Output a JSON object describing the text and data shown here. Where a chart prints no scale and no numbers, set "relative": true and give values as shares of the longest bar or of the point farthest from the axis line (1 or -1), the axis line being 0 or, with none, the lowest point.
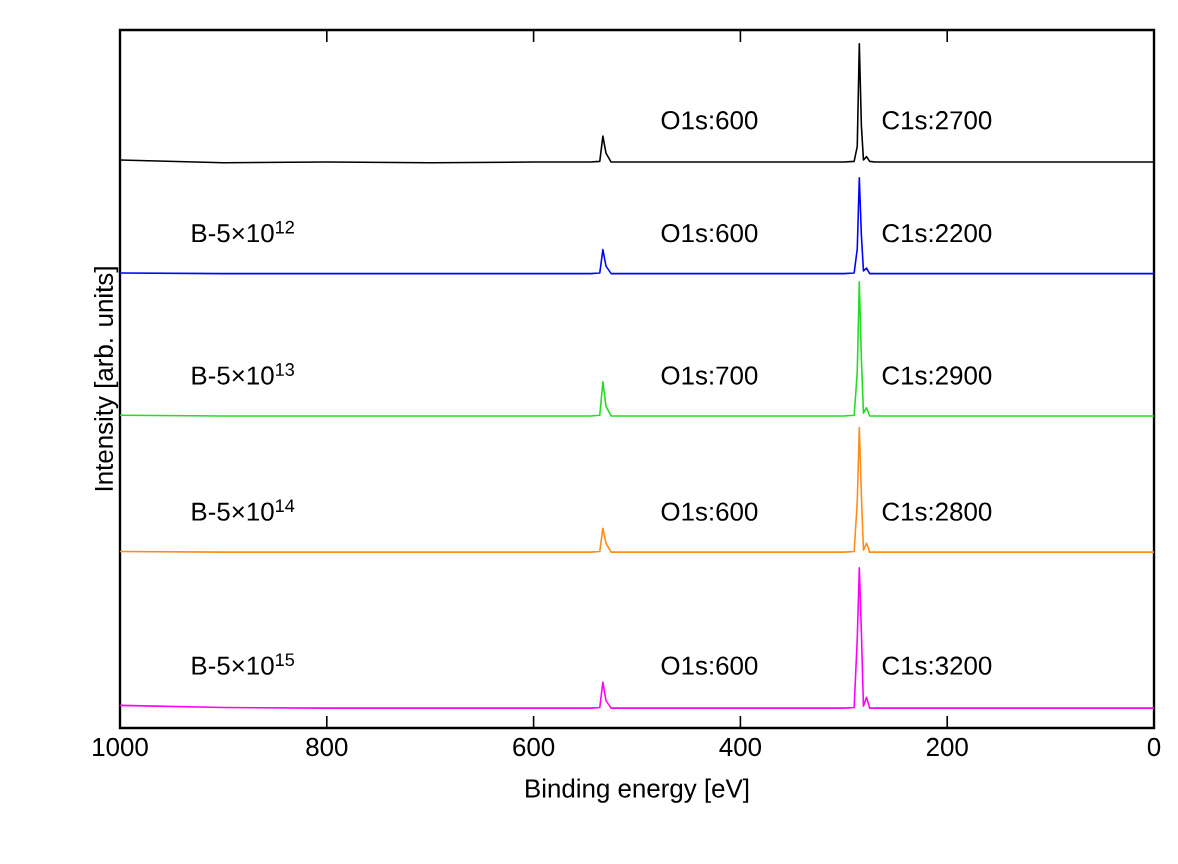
{
  "chart_data": {
    "type": "line",
    "relative": true,
    "xlabel": "Binding energy [eV]",
    "ylabel": "Intensity [arb. units]",
    "xlim": [
      1000,
      0
    ],
    "xticks": [
      1000,
      800,
      600,
      400,
      200,
      0
    ],
    "tick_labels": "x",
    "marker": "none",
    "line_style": "solid",
    "x": [
      1000,
      900,
      800,
      700,
      600,
      545,
      536,
      533,
      530,
      525,
      450,
      350,
      300,
      290,
      287,
      285,
      283,
      281,
      278,
      275,
      270,
      200,
      100,
      0
    ],
    "series": [
      {
        "name": null,
        "color": "#000000",
        "values": [
          0.83,
          0.826,
          0.827,
          0.826,
          0.827,
          0.827,
          0.828,
          0.865,
          0.84,
          0.827,
          0.827,
          0.827,
          0.827,
          0.828,
          0.85,
          1.0,
          0.88,
          0.83,
          0.835,
          0.828,
          0.827,
          0.827,
          0.827,
          0.827
        ]
      },
      {
        "name": "B-5×10$^{12}$",
        "color": "#0000ff",
        "values": [
          0.665,
          0.664,
          0.664,
          0.664,
          0.664,
          0.664,
          0.665,
          0.699,
          0.675,
          0.664,
          0.664,
          0.664,
          0.664,
          0.665,
          0.7,
          0.804,
          0.72,
          0.668,
          0.672,
          0.664,
          0.664,
          0.664,
          0.664,
          0.664
        ]
      },
      {
        "name": "B-5×10$^{13}$",
        "color": "#22dd22",
        "values": [
          0.457,
          0.456,
          0.456,
          0.456,
          0.456,
          0.456,
          0.457,
          0.506,
          0.47,
          0.456,
          0.456,
          0.456,
          0.456,
          0.457,
          0.52,
          0.652,
          0.54,
          0.46,
          0.468,
          0.456,
          0.456,
          0.456,
          0.456,
          0.456
        ]
      },
      {
        "name": "B-5×10$^{14}$",
        "color": "#ff8c1a",
        "values": [
          0.258,
          0.257,
          0.257,
          0.257,
          0.257,
          0.257,
          0.258,
          0.292,
          0.27,
          0.257,
          0.257,
          0.257,
          0.257,
          0.258,
          0.33,
          0.439,
          0.34,
          0.26,
          0.27,
          0.257,
          0.257,
          0.257,
          0.257,
          0.257
        ]
      },
      {
        "name": "B-5×10$^{15}$",
        "color": "#ff00ff",
        "values": [
          0.033,
          0.03,
          0.029,
          0.029,
          0.029,
          0.029,
          0.03,
          0.067,
          0.04,
          0.029,
          0.029,
          0.029,
          0.029,
          0.03,
          0.13,
          0.234,
          0.14,
          0.032,
          0.045,
          0.029,
          0.029,
          0.029,
          0.029,
          0.029
        ]
      }
    ],
    "annotations": [
      "O1s:600",
      "C1s:2700",
      "O1s:600",
      "C1s:2200",
      "O1s:700",
      "C1s:2900",
      "O1s:600",
      "C1s:2800",
      "O1s:600",
      "C1s:3200"
    ]
  }
}
